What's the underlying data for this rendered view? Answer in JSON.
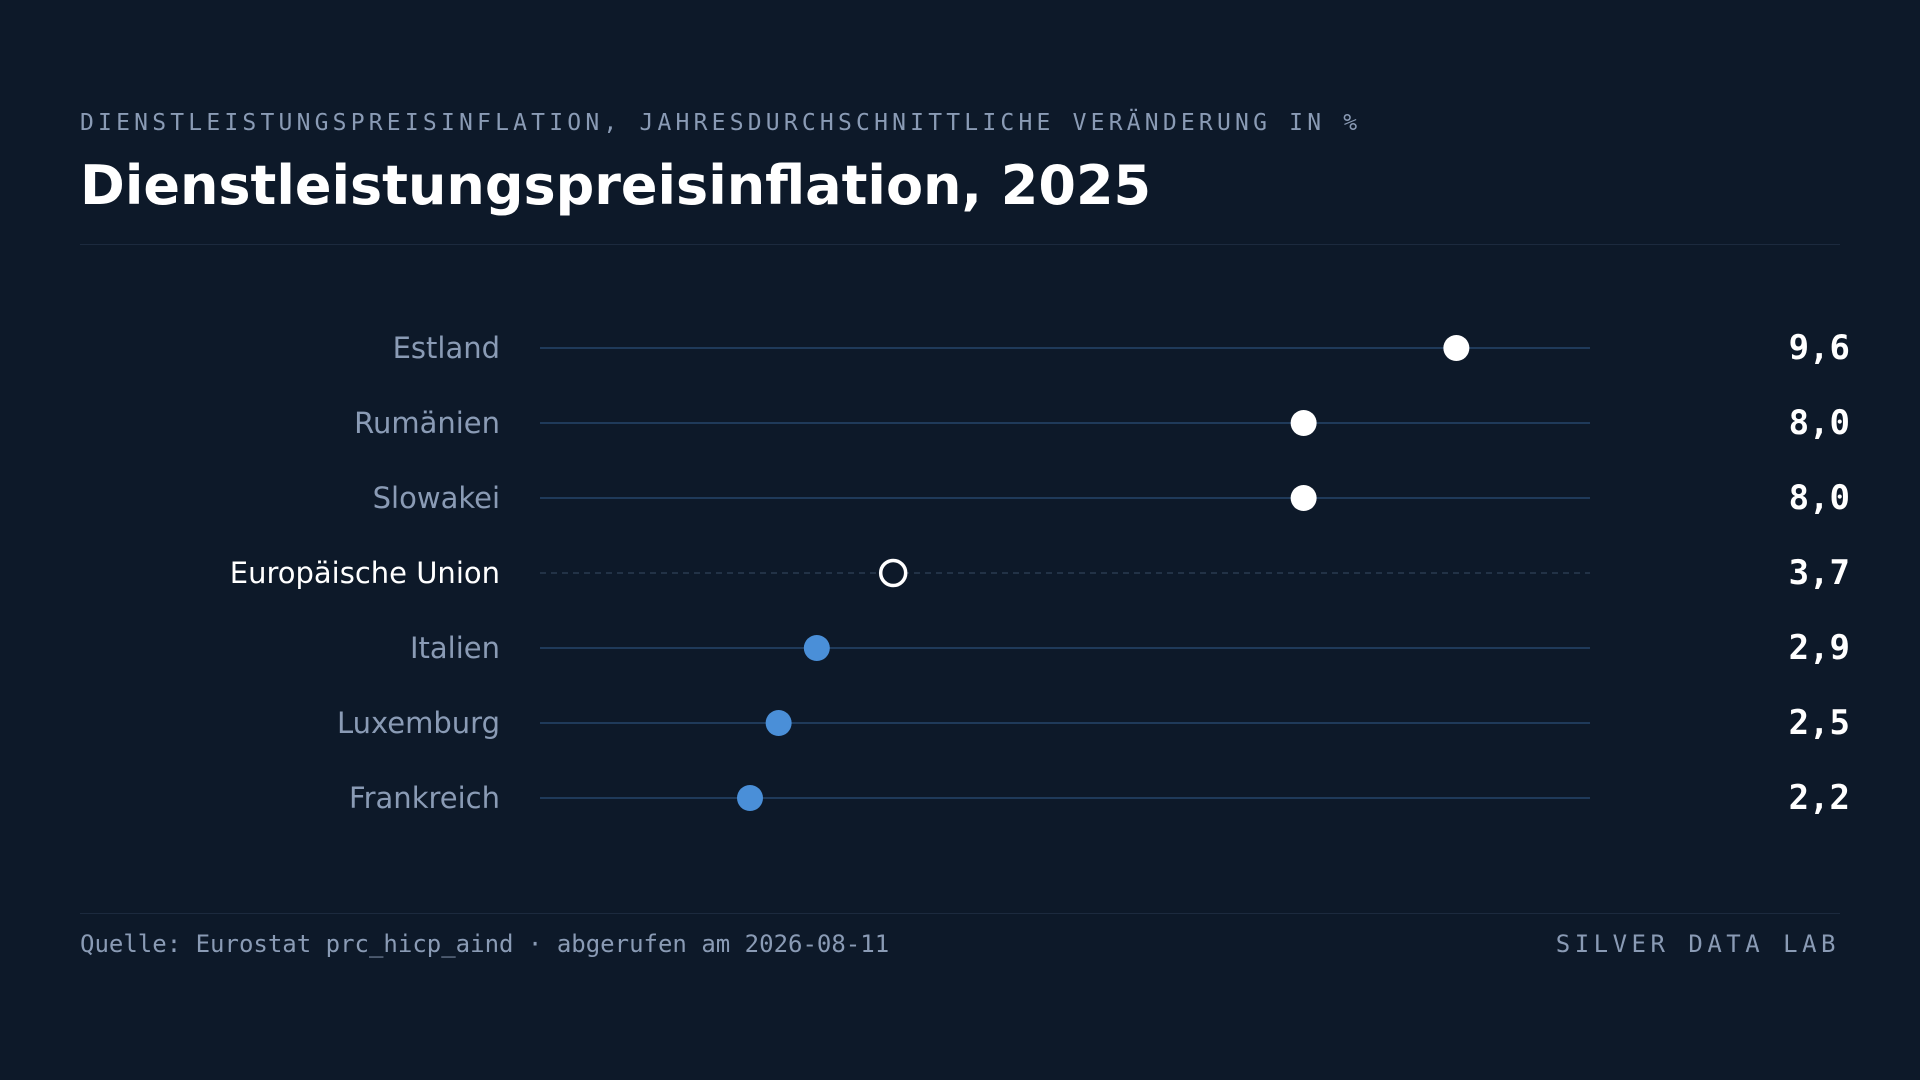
{
  "header": {
    "subtitle": "DIENSTLEISTUNGSPREISINFLATION, JAHRESDURCHSCHNITTLICHE VERÄNDERUNG IN %",
    "title": "Dienstleistungspreisinflation, 2025"
  },
  "footer": {
    "source": "Quelle: Eurostat prc_hicp_aind · abgerufen am 2026-08-11",
    "brand": "SILVER DATA LAB"
  },
  "colors": {
    "background": "#0d1929",
    "high": "#ffffff",
    "low": "#4a8fd8",
    "reference": "#ffffff",
    "track": "#1f3a5a",
    "label": "#8a9bb5",
    "reference_label": "#ffffff",
    "value": "#ffffff"
  },
  "chart_data": {
    "type": "dot",
    "xlim": [
      0,
      11
    ],
    "categories": [
      "Estland",
      "Rumänien",
      "Slowakei",
      "Europäische Union",
      "Italien",
      "Luxemburg",
      "Frankreich"
    ],
    "values": [
      9.6,
      8.0,
      8.0,
      3.7,
      2.9,
      2.5,
      2.2
    ],
    "value_labels": [
      "9,6",
      "8,0",
      "8,0",
      "3,7",
      "2,9",
      "2,5",
      "2,2"
    ],
    "groups": [
      "high",
      "high",
      "high",
      "reference",
      "low",
      "low",
      "low"
    ],
    "reference": "Europäische Union",
    "grid": false,
    "legend": "none"
  }
}
